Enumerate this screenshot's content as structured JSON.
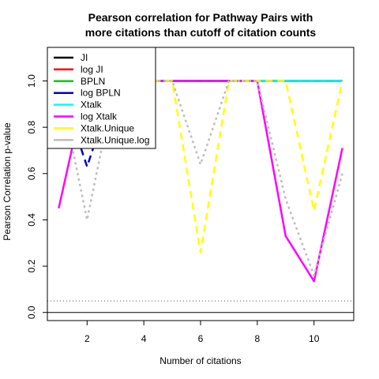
{
  "chart_data": {
    "type": "line",
    "title_lines": [
      "Pearson correlation for Pathway Pairs with",
      "more citations than cutoff of citation counts"
    ],
    "xlabel": "Number of citations",
    "ylabel": "Pearson Correlation p-value",
    "xlim": [
      0.6,
      11.4
    ],
    "ylim": [
      -0.035,
      1.145
    ],
    "x_ticks": [
      2,
      4,
      6,
      8,
      10
    ],
    "y_ticks": [
      0.0,
      0.2,
      0.4,
      0.6,
      0.8,
      1.0
    ],
    "x_tick_labels": [
      "2",
      "4",
      "6",
      "8",
      "10"
    ],
    "y_tick_labels": [
      "0.0",
      "0.2",
      "0.4",
      "0.6",
      "0.8",
      "1.0"
    ],
    "x": [
      1,
      2,
      3,
      4,
      5,
      6,
      7,
      8,
      9,
      10,
      11
    ],
    "reference_lines": [
      {
        "y": 0.05,
        "style": "dotted",
        "color": "#555555"
      },
      {
        "y": 0.0,
        "style": "solid",
        "color": "#000000"
      }
    ],
    "legend_position": "top-left",
    "series": [
      {
        "name": "JI",
        "color": "#000000",
        "dash": "solid",
        "values": [
          1,
          1,
          1,
          1,
          1,
          1,
          1,
          1,
          1,
          1,
          1
        ]
      },
      {
        "name": "log JI",
        "color": "#ff0000",
        "dash": "dashed",
        "values": [
          1,
          1,
          1,
          1,
          1,
          1,
          1,
          1,
          1,
          1,
          1
        ]
      },
      {
        "name": "BPLN",
        "color": "#00cd00",
        "dash": "solid",
        "values": [
          1,
          1,
          1,
          1,
          1,
          1,
          1,
          1,
          1,
          1,
          1
        ]
      },
      {
        "name": "log BPLN",
        "color": "#0000cd",
        "dash": "dashed",
        "values": [
          1,
          0.63,
          1,
          1,
          1,
          1,
          1,
          1,
          1,
          1,
          1
        ]
      },
      {
        "name": "Xtalk",
        "color": "#00ffff",
        "dash": "solid",
        "values": [
          1,
          1,
          1,
          1,
          1,
          1,
          1,
          1,
          1,
          1,
          1
        ]
      },
      {
        "name": "log Xtalk",
        "color": "#ff00ff",
        "dash": "solid",
        "values": [
          0.45,
          1,
          1,
          1,
          1,
          1,
          1,
          1,
          0.33,
          0.135,
          0.71
        ]
      },
      {
        "name": "Xtalk.Unique",
        "color": "#ffff00",
        "dash": "dashed",
        "values": [
          1,
          1,
          1,
          1,
          1,
          0.26,
          1,
          1,
          1,
          0.44,
          1
        ]
      },
      {
        "name": "Xtalk.Unique.log",
        "color": "#bebebe",
        "dash": "dotted",
        "values": [
          1,
          0.4,
          1,
          1,
          1,
          0.64,
          1,
          1,
          0.49,
          0.16,
          0.6
        ]
      }
    ]
  }
}
